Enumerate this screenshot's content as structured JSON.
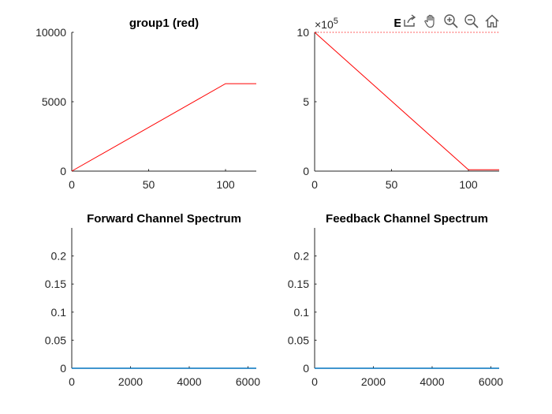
{
  "colors": {
    "red_series": "#ff0000",
    "blue_series": "#0072bd",
    "axis": "#262626",
    "background": "#ffffff"
  },
  "chart_data": [
    {
      "type": "line",
      "title": "group1 (red)",
      "xlim": [
        0,
        120
      ],
      "ylim": [
        0,
        10000
      ],
      "xticks": [
        0,
        50,
        100
      ],
      "yticks": [
        0,
        5000,
        10000
      ],
      "xtick_labels": [
        "0",
        "50",
        "100"
      ],
      "ytick_labels": [
        "0",
        "5000",
        "10000"
      ],
      "series": [
        {
          "color": "#ff0000",
          "style": "solid",
          "x": [
            0,
            100,
            120
          ],
          "y": [
            0,
            6300,
            6300
          ]
        }
      ]
    },
    {
      "type": "line",
      "title": "Ener",
      "xlim": [
        0,
        120
      ],
      "ylim": [
        0,
        10
      ],
      "y_exponent_base": "×10",
      "y_exponent_power": "5",
      "xticks": [
        0,
        50,
        100
      ],
      "yticks": [
        0,
        5,
        10
      ],
      "xtick_labels": [
        "0",
        "50",
        "100"
      ],
      "ytick_labels": [
        "0",
        "5",
        "10"
      ],
      "series": [
        {
          "color": "#ff0000",
          "style": "solid",
          "x": [
            0,
            100,
            120
          ],
          "y": [
            10,
            0.1,
            0.1
          ]
        },
        {
          "color": "#ff0000",
          "style": "dotted",
          "x": [
            0,
            120
          ],
          "y": [
            10,
            10
          ]
        }
      ]
    },
    {
      "type": "line",
      "title": "Forward Channel Spectrum",
      "xlim": [
        0,
        6283
      ],
      "ylim": [
        0,
        0.25
      ],
      "xticks": [
        0,
        2000,
        4000,
        6000
      ],
      "yticks": [
        0,
        0.05,
        0.1,
        0.15,
        0.2
      ],
      "xtick_labels": [
        "0",
        "2000",
        "4000",
        "6000"
      ],
      "ytick_labels": [
        "0",
        "0.05",
        "0.1",
        "0.15",
        "0.2"
      ],
      "series": [
        {
          "color": "#0072bd",
          "style": "solid",
          "x": [
            0,
            6283
          ],
          "y": [
            0,
            0
          ]
        }
      ]
    },
    {
      "type": "line",
      "title": "Feedback Channel Spectrum",
      "xlim": [
        0,
        6283
      ],
      "ylim": [
        0,
        0.25
      ],
      "xticks": [
        0,
        2000,
        4000,
        6000
      ],
      "yticks": [
        0,
        0.05,
        0.1,
        0.15,
        0.2
      ],
      "xtick_labels": [
        "0",
        "2000",
        "4000",
        "6000"
      ],
      "ytick_labels": [
        "0",
        "0.05",
        "0.1",
        "0.15",
        "0.2"
      ],
      "series": [
        {
          "color": "#0072bd",
          "style": "solid",
          "x": [
            0,
            6283
          ],
          "y": [
            0,
            0
          ]
        }
      ]
    }
  ],
  "toolbar": {
    "buttons": [
      {
        "icon": "export-icon"
      },
      {
        "icon": "pan-hand-icon"
      },
      {
        "icon": "zoom-in-icon"
      },
      {
        "icon": "zoom-out-icon"
      },
      {
        "icon": "home-icon"
      }
    ]
  }
}
